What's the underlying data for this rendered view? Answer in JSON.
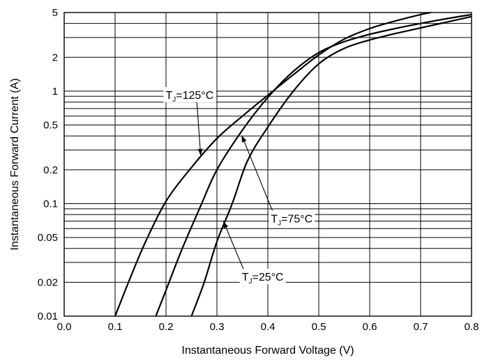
{
  "chart_data": {
    "type": "line",
    "title": "",
    "xlabel": "Instantaneous Forward Voltage (V)",
    "ylabel": "Instantaneous Forward Current (A)",
    "x_scale": "linear",
    "y_scale": "log",
    "xlim": [
      0.0,
      0.8
    ],
    "ylim": [
      0.01,
      5
    ],
    "grid": true,
    "x_ticks": [
      "0.0",
      "0.1",
      "0.2",
      "0.3",
      "0.4",
      "0.5",
      "0.6",
      "0.7",
      "0.8"
    ],
    "y_ticks": [
      {
        "value": 0.01,
        "label": "0.01"
      },
      {
        "value": 0.02,
        "label": "0.02"
      },
      {
        "value": 0.05,
        "label": "0.05"
      },
      {
        "value": 0.1,
        "label": "0.1"
      },
      {
        "value": 0.2,
        "label": "0.2"
      },
      {
        "value": 0.5,
        "label": "0.5"
      },
      {
        "value": 1,
        "label": "1"
      },
      {
        "value": 2,
        "label": "2"
      },
      {
        "value": 5,
        "label": "5"
      }
    ],
    "series": [
      {
        "name": "TJ=125°C",
        "label_main": "T",
        "label_sub": "J",
        "label_rest": "=125°C",
        "label_at": [
          0.247,
          0.93
        ],
        "arrow_to": [
          0.268,
          0.27
        ],
        "points": [
          [
            0.1,
            0.01
          ],
          [
            0.13,
            0.022
          ],
          [
            0.16,
            0.046
          ],
          [
            0.2,
            0.105
          ],
          [
            0.25,
            0.21
          ],
          [
            0.3,
            0.38
          ],
          [
            0.35,
            0.6
          ],
          [
            0.4,
            0.92
          ],
          [
            0.45,
            1.4
          ],
          [
            0.5,
            2.1
          ],
          [
            0.55,
            2.9
          ],
          [
            0.6,
            3.6
          ],
          [
            0.65,
            4.2
          ],
          [
            0.7,
            4.8
          ],
          [
            0.72,
            5.0
          ]
        ]
      },
      {
        "name": "TJ=75°C",
        "label_main": "T",
        "label_sub": "J",
        "label_rest": "=75°C",
        "label_at": [
          0.447,
          0.074
        ],
        "arrow_to": [
          0.349,
          0.4
        ],
        "points": [
          [
            0.18,
            0.01
          ],
          [
            0.2,
            0.017
          ],
          [
            0.23,
            0.038
          ],
          [
            0.27,
            0.1
          ],
          [
            0.3,
            0.2
          ],
          [
            0.35,
            0.45
          ],
          [
            0.4,
            0.88
          ],
          [
            0.45,
            1.5
          ],
          [
            0.5,
            2.2
          ],
          [
            0.55,
            2.75
          ],
          [
            0.6,
            3.2
          ],
          [
            0.65,
            3.6
          ],
          [
            0.7,
            4.0
          ],
          [
            0.75,
            4.4
          ],
          [
            0.8,
            4.8
          ]
        ]
      },
      {
        "name": "TJ=25°C",
        "label_main": "T",
        "label_sub": "J",
        "label_rest": "=25°C",
        "label_at": [
          0.39,
          0.0225
        ],
        "arrow_to": [
          0.313,
          0.069
        ],
        "points": [
          [
            0.25,
            0.01
          ],
          [
            0.275,
            0.02
          ],
          [
            0.3,
            0.046
          ],
          [
            0.33,
            0.1
          ],
          [
            0.36,
            0.24
          ],
          [
            0.4,
            0.48
          ],
          [
            0.45,
            1.0
          ],
          [
            0.5,
            1.75
          ],
          [
            0.55,
            2.4
          ],
          [
            0.6,
            2.85
          ],
          [
            0.65,
            3.25
          ],
          [
            0.7,
            3.65
          ],
          [
            0.75,
            4.1
          ],
          [
            0.8,
            4.6
          ]
        ]
      }
    ]
  }
}
